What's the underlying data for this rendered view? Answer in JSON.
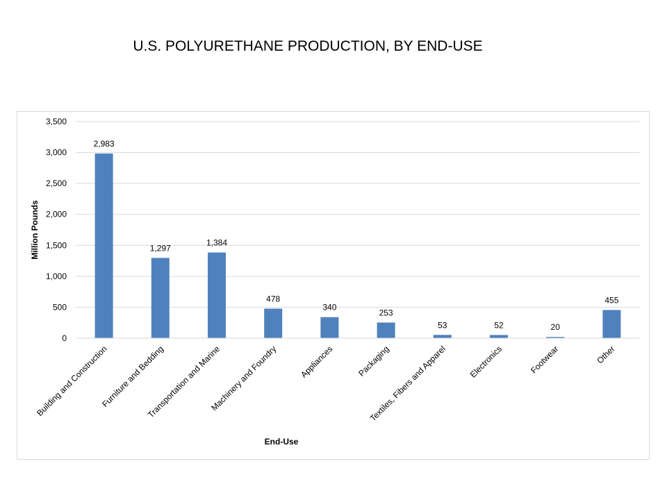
{
  "title": "U.S. POLYURETHANE PRODUCTION, BY END-USE",
  "chart_data": {
    "type": "bar",
    "title": "U.S. POLYURETHANE PRODUCTION, BY END-USE",
    "xlabel": "End-Use",
    "ylabel": "Million Pounds",
    "categories": [
      "Building and Construction",
      "Furniture and Bedding",
      "Transportation and Marine",
      "Machinery and Foundry",
      "Appliances",
      "Packaging",
      "Textiles, Fibers and Apparel",
      "Electronics",
      "Footwear",
      "Other"
    ],
    "values": [
      2983,
      1297,
      1384,
      478,
      340,
      253,
      53,
      52,
      20,
      455
    ],
    "data_labels": [
      "2,983",
      "1,297",
      "1,384",
      "478",
      "340",
      "253",
      "53",
      "52",
      "20",
      "455"
    ],
    "yticks": [
      "0",
      "500",
      "1,000",
      "1,500",
      "2,000",
      "2,500",
      "3,000",
      "3,500"
    ],
    "ylim": [
      0,
      3500
    ],
    "grid": true,
    "legend": "none",
    "bar_color": "#4f81bd",
    "grid_color": "#d9d9d9"
  }
}
